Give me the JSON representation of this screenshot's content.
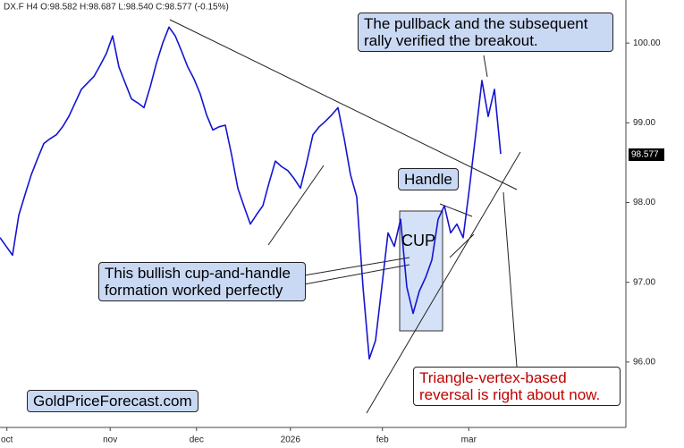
{
  "chart_data": {
    "type": "line",
    "title": "DX.F  H4  O:98.582  H:98.687  L:98.540  C:98.577  (-0.15%)",
    "color": "#1414d2",
    "values": [
      97.56,
      97.45,
      97.34,
      97.84,
      98.1,
      98.35,
      98.55,
      98.74,
      98.8,
      98.85,
      98.95,
      99.08,
      99.25,
      99.42,
      99.5,
      99.58,
      99.72,
      99.87,
      100.09,
      99.7,
      99.5,
      99.3,
      99.25,
      99.19,
      99.45,
      99.75,
      100.0,
      100.2,
      100.09,
      99.9,
      99.7,
      99.55,
      99.36,
      99.1,
      98.91,
      98.95,
      98.97,
      98.6,
      98.18,
      97.95,
      97.73,
      97.85,
      97.96,
      98.25,
      98.52,
      98.45,
      98.4,
      98.3,
      98.18,
      98.5,
      98.85,
      98.95,
      99.02,
      99.1,
      99.19,
      98.8,
      98.35,
      98.07,
      96.94,
      96.04,
      96.27,
      96.94,
      97.62,
      97.45,
      97.79,
      96.94,
      96.61,
      96.89,
      97.06,
      97.28,
      97.79,
      97.96,
      97.62,
      97.73,
      97.56,
      98.18,
      98.85,
      99.53,
      99.08,
      99.42,
      98.61
    ],
    "xlim": [
      0,
      100
    ],
    "xticks": [
      {
        "value": 1.1,
        "label": "oct"
      },
      {
        "value": 17.6,
        "label": "nov"
      },
      {
        "value": 31.4,
        "label": "dec"
      },
      {
        "value": 46.4,
        "label": "2026"
      },
      {
        "value": 61.1,
        "label": "feb"
      },
      {
        "value": 74.9,
        "label": "mar"
      }
    ],
    "ylim": [
      95.18,
      100.54
    ],
    "yticks": [
      {
        "value": 96,
        "label": "96.00"
      },
      {
        "value": 97,
        "label": "97.00"
      },
      {
        "value": 98,
        "label": "98.00"
      },
      {
        "value": 99,
        "label": "99.00"
      },
      {
        "value": 100,
        "label": "100.00"
      }
    ],
    "last_price": 98.577,
    "annotations": {
      "breakout": "The pullback and the subsequent rally verified the breakout.",
      "handle": "Handle",
      "cup": "CUP",
      "cup_handle": "This bullish cup-and-handle formation worked perfectly",
      "triangle": "Triangle-vertex-based reversal is right about now.",
      "site": "GoldPriceForecast.com"
    }
  }
}
